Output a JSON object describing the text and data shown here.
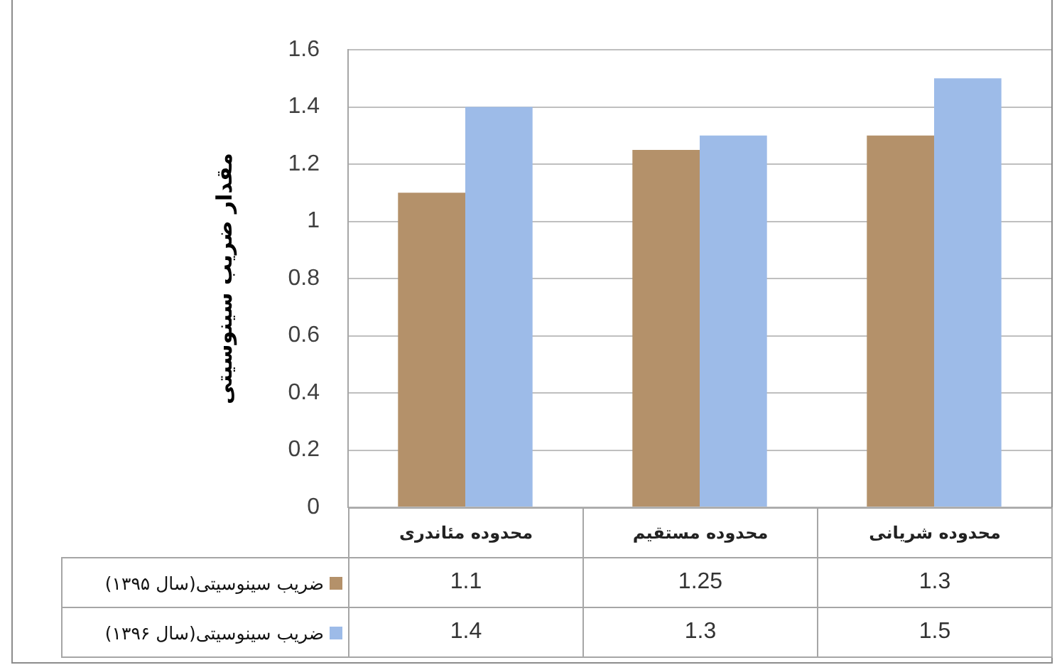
{
  "chart_data": {
    "type": "bar",
    "ylabel": "مقدار ضریب سینوسیتی",
    "categories": [
      "محدوده مئاندری",
      "محدوده مستقیم",
      "محدوده شریانی"
    ],
    "series": [
      {
        "name": "ضریب سینوسیتی(سال ۱۳۹۵)",
        "color": "#b4916a",
        "values": [
          1.1,
          1.25,
          1.3
        ]
      },
      {
        "name": "ضریب سینوسیتی(سال ۱۳۹۶)",
        "color": "#9dbbe8",
        "values": [
          1.4,
          1.3,
          1.5
        ]
      }
    ],
    "ylim": [
      0,
      1.6
    ],
    "yticks": [
      0,
      0.2,
      0.4,
      0.6,
      0.8,
      1,
      1.2,
      1.4,
      1.6
    ],
    "grid": "y",
    "legend": "bottom",
    "data_labels": true
  }
}
